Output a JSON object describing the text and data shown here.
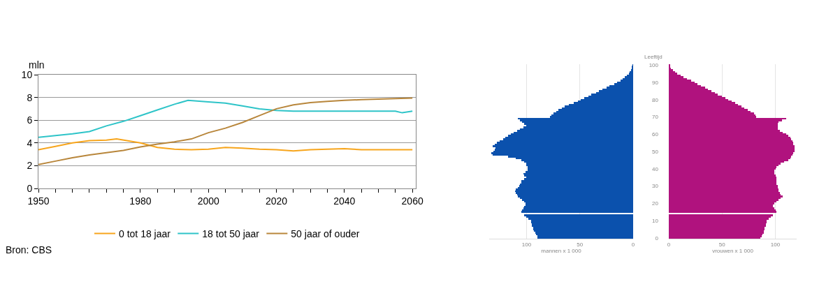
{
  "chart_data": [
    {
      "type": "line",
      "ylabel": "mln",
      "xlim": [
        1950,
        2061
      ],
      "ylim": [
        0,
        10
      ],
      "yticks": [
        0,
        2,
        4,
        6,
        8,
        10
      ],
      "xticks": [
        1950,
        {
          "value": 1955,
          "label": null
        },
        {
          "value": 1960,
          "label": null
        },
        {
          "value": 1965,
          "label": null
        },
        {
          "value": 1970,
          "label": null
        },
        {
          "value": 1975,
          "label": null
        },
        1980,
        {
          "value": 1985,
          "label": null
        },
        {
          "value": 1990,
          "label": null
        },
        {
          "value": 1995,
          "label": null
        },
        2000,
        {
          "value": 2005,
          "label": null
        },
        {
          "value": 2010,
          "label": null
        },
        {
          "value": 2015,
          "label": null
        },
        2020,
        {
          "value": 2025,
          "label": null
        },
        {
          "value": 2030,
          "label": null
        },
        {
          "value": 2035,
          "label": null
        },
        2040,
        {
          "value": 2045,
          "label": null
        },
        {
          "value": 2050,
          "label": null
        },
        {
          "value": 2055,
          "label": null
        },
        2060
      ],
      "grid": "y",
      "legend": "bottom",
      "marker": "none",
      "line_style": "solid",
      "annotations": [
        "Bron: CBS"
      ],
      "series": [
        {
          "name": "0 tot 18 jaar",
          "color": "#f7a51c",
          "x": [
            1950,
            1955,
            1960,
            1965,
            1970,
            1973,
            1980,
            1985,
            1990,
            1995,
            2000,
            2005,
            2010,
            2015,
            2020,
            2025,
            2030,
            2035,
            2040,
            2045,
            2050,
            2055,
            2060
          ],
          "values": [
            3.4,
            3.7,
            4.0,
            4.2,
            4.25,
            4.35,
            4.0,
            3.6,
            3.45,
            3.4,
            3.45,
            3.6,
            3.55,
            3.45,
            3.4,
            3.3,
            3.4,
            3.45,
            3.5,
            3.4,
            3.4,
            3.4,
            3.4
          ]
        },
        {
          "name": "18 tot 50 jaar",
          "color": "#2ec4c8",
          "x": [
            1950,
            1955,
            1960,
            1965,
            1970,
            1975,
            1980,
            1985,
            1990,
            1994,
            2000,
            2005,
            2010,
            2015,
            2020,
            2025,
            2030,
            2040,
            2050,
            2055,
            2057,
            2060
          ],
          "values": [
            4.5,
            4.65,
            4.8,
            5.0,
            5.5,
            5.9,
            6.4,
            6.9,
            7.4,
            7.75,
            7.6,
            7.5,
            7.25,
            7.0,
            6.85,
            6.8,
            6.8,
            6.8,
            6.8,
            6.8,
            6.65,
            6.8
          ]
        },
        {
          "name": "50 jaar of ouder",
          "color": "#b8863b",
          "x": [
            1950,
            1955,
            1960,
            1965,
            1970,
            1975,
            1980,
            1985,
            1990,
            1995,
            2000,
            2005,
            2010,
            2015,
            2020,
            2025,
            2030,
            2035,
            2040,
            2045,
            2050,
            2055,
            2060
          ],
          "values": [
            2.1,
            2.4,
            2.7,
            2.95,
            3.15,
            3.35,
            3.65,
            3.9,
            4.1,
            4.35,
            4.9,
            5.3,
            5.8,
            6.4,
            7.0,
            7.35,
            7.55,
            7.65,
            7.75,
            7.8,
            7.85,
            7.9,
            7.95
          ]
        }
      ]
    },
    {
      "type": "bar",
      "orientation": "horizontal",
      "xlabel": "mannen x 1 000",
      "xlim": [
        135,
        0
      ],
      "xticks": [
        100,
        50,
        0
      ],
      "grid": "x",
      "tick_labels": "x",
      "categories": [
        "100",
        null,
        null,
        null,
        null,
        null,
        null,
        null,
        null,
        null,
        "90",
        null,
        null,
        null,
        null,
        null,
        null,
        null,
        null,
        null,
        "80",
        null,
        null,
        null,
        null,
        null,
        null,
        null,
        null,
        null,
        "70",
        null,
        null,
        null,
        null,
        null,
        null,
        null,
        null,
        null,
        "60",
        null,
        null,
        null,
        null,
        null,
        null,
        null,
        null,
        null,
        "50",
        null,
        null,
        null,
        null,
        null,
        null,
        null,
        null,
        null,
        "40",
        null,
        null,
        null,
        null,
        null,
        null,
        null,
        null,
        null,
        "30",
        null,
        null,
        null,
        null,
        null,
        null,
        null,
        null,
        null,
        "20",
        null,
        null,
        null,
        null,
        null,
        null,
        null,
        null,
        null,
        "10",
        null,
        null,
        null,
        null,
        null,
        null,
        null,
        null,
        null,
        "0"
      ],
      "series": [
        {
          "color": "#0b51ad",
          "values": [
            0.5,
            1,
            1,
            2,
            3,
            4,
            6,
            8,
            10,
            12,
            15,
            18,
            22,
            25,
            29,
            32,
            35,
            39,
            42,
            46,
            49,
            52,
            56,
            60,
            64,
            67,
            70,
            72,
            75,
            77,
            78,
            108,
            106,
            104,
            102,
            100,
            103,
            106,
            109,
            112,
            115,
            117,
            120,
            122,
            125,
            128,
            130,
            132,
            129,
            130,
            131,
            133,
            132,
            117,
            110,
            105,
            102,
            100,
            100,
            99,
            99,
            99,
            101,
            103,
            102,
            100,
            102,
            105,
            105,
            106,
            107,
            108,
            110,
            111,
            110,
            109,
            108,
            106,
            104,
            102,
            101,
            101,
            102,
            103,
            104,
            105,
            null,
            102,
            100,
            98,
            96,
            96,
            95,
            95,
            94,
            94,
            93,
            92,
            91,
            90,
            90
          ]
        }
      ]
    },
    {
      "type": "bar",
      "orientation": "horizontal",
      "xlabel": "vrouwen x 1 000",
      "ylabel": "Leeftijd",
      "xlim": [
        0,
        120
      ],
      "xticks": [
        0,
        50,
        100
      ],
      "grid": "x",
      "categories": [
        "100",
        null,
        null,
        null,
        null,
        null,
        null,
        null,
        null,
        null,
        "90",
        null,
        null,
        null,
        null,
        null,
        null,
        null,
        null,
        null,
        "80",
        null,
        null,
        null,
        null,
        null,
        null,
        null,
        null,
        null,
        "70",
        null,
        null,
        null,
        null,
        null,
        null,
        null,
        null,
        null,
        "60",
        null,
        null,
        null,
        null,
        null,
        null,
        null,
        null,
        null,
        "50",
        null,
        null,
        null,
        null,
        null,
        null,
        null,
        null,
        null,
        "40",
        null,
        null,
        null,
        null,
        null,
        null,
        null,
        null,
        null,
        "30",
        null,
        null,
        null,
        null,
        null,
        null,
        null,
        null,
        null,
        "20",
        null,
        null,
        null,
        null,
        null,
        null,
        null,
        null,
        null,
        "10",
        null,
        null,
        null,
        null,
        null,
        null,
        null,
        null,
        null,
        "0"
      ],
      "series": [
        {
          "color": "#b0127e",
          "values": [
            1,
            1,
            2,
            4,
            6,
            8,
            11,
            14,
            17,
            21,
            24,
            27,
            30,
            34,
            37,
            40,
            43,
            46,
            50,
            53,
            56,
            59,
            62,
            65,
            68,
            71,
            74,
            77,
            80,
            81,
            82,
            110,
            106,
            103,
            102,
            102,
            102,
            102,
            104,
            107,
            110,
            112,
            114,
            115,
            116,
            117,
            117,
            118,
            118,
            118,
            118,
            117,
            116,
            115,
            114,
            112,
            108,
            105,
            103,
            101,
            100,
            99,
            99,
            99,
            100,
            101,
            101,
            101,
            101,
            101,
            102,
            102,
            103,
            103,
            104,
            105,
            107,
            105,
            103,
            101,
            99,
            98,
            98,
            99,
            100,
            101,
            null,
            98,
            96,
            94,
            92,
            92,
            91,
            91,
            90,
            90,
            89,
            89,
            88,
            87,
            86
          ]
        }
      ]
    }
  ]
}
